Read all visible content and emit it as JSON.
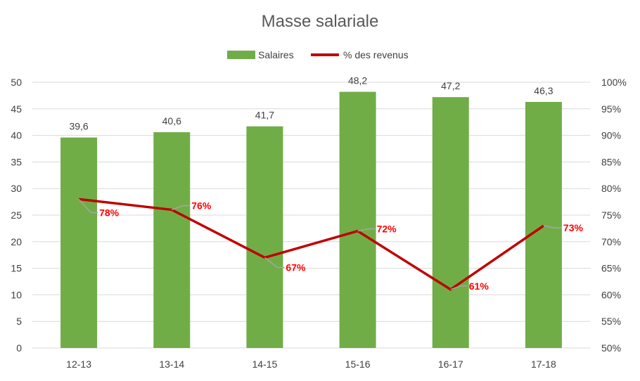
{
  "chart_data": {
    "type": "bar+line",
    "title": "Masse salariale",
    "categories": [
      "12-13",
      "13-14",
      "14-15",
      "15-16",
      "16-17",
      "17-18"
    ],
    "series": [
      {
        "name": "Salaires",
        "type": "bar",
        "axis": "left",
        "color": "#70ad47",
        "values": [
          39.6,
          40.6,
          41.7,
          48.2,
          47.2,
          46.3
        ],
        "labels": [
          "39,6",
          "40,6",
          "41,7",
          "48,2",
          "47,2",
          "46,3"
        ]
      },
      {
        "name": "% des revenus",
        "type": "line",
        "axis": "right",
        "color": "#c00000",
        "values": [
          78,
          76,
          67,
          72,
          61,
          73
        ],
        "labels": [
          "78%",
          "76%",
          "67%",
          "72%",
          "61%",
          "73%"
        ],
        "label_color": "#ff0000"
      }
    ],
    "y_left": {
      "range": [
        0,
        50
      ],
      "ticks": [
        "0",
        "5",
        "10",
        "15",
        "20",
        "25",
        "30",
        "35",
        "40",
        "45",
        "50"
      ]
    },
    "y_right": {
      "range": [
        50,
        100
      ],
      "ticks": [
        "50%",
        "55%",
        "60%",
        "65%",
        "70%",
        "75%",
        "80%",
        "85%",
        "90%",
        "95%",
        "100%"
      ]
    },
    "grid": true,
    "legend": "top"
  }
}
